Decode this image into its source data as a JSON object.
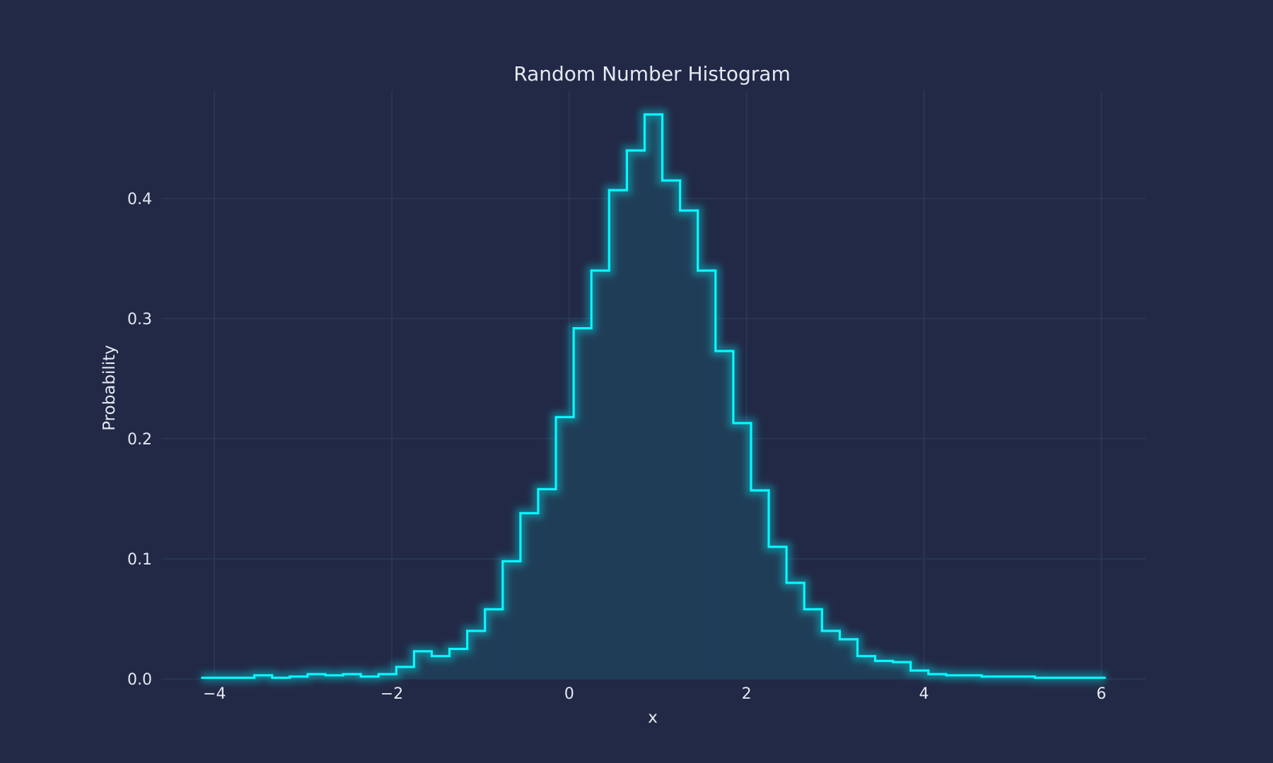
{
  "chart_data": {
    "type": "histogram",
    "title": "Random Number Histogram",
    "xlabel": "x",
    "ylabel": "Probability",
    "xlim": [
      -4.6,
      6.5
    ],
    "ylim": [
      0,
      0.49
    ],
    "xticks": [
      -4,
      -2,
      0,
      2,
      4,
      6
    ],
    "xtick_labels": [
      "−4",
      "−2",
      "0",
      "2",
      "4",
      "6"
    ],
    "yticks": [
      0.0,
      0.1,
      0.2,
      0.3,
      0.4
    ],
    "ytick_labels": [
      "0.0",
      "0.1",
      "0.2",
      "0.3",
      "0.4"
    ],
    "grid": true,
    "bin_start": -4.15,
    "bin_width": 0.2,
    "values": [
      0.001,
      0.001,
      0.001,
      0.003,
      0.001,
      0.002,
      0.004,
      0.003,
      0.004,
      0.002,
      0.004,
      0.01,
      0.023,
      0.019,
      0.025,
      0.04,
      0.058,
      0.098,
      0.138,
      0.158,
      0.218,
      0.292,
      0.34,
      0.407,
      0.44,
      0.47,
      0.415,
      0.39,
      0.34,
      0.273,
      0.213,
      0.157,
      0.11,
      0.08,
      0.058,
      0.04,
      0.033,
      0.019,
      0.015,
      0.014,
      0.007,
      0.004,
      0.003,
      0.003,
      0.002,
      0.002,
      0.002,
      0.001,
      0.001,
      0.001,
      0.001
    ],
    "colors": {
      "background": "#212946",
      "line": "#08F7FE",
      "fill": "#1f3d57",
      "grid": "#2e3b5c",
      "text": "#e6e9f2"
    }
  }
}
